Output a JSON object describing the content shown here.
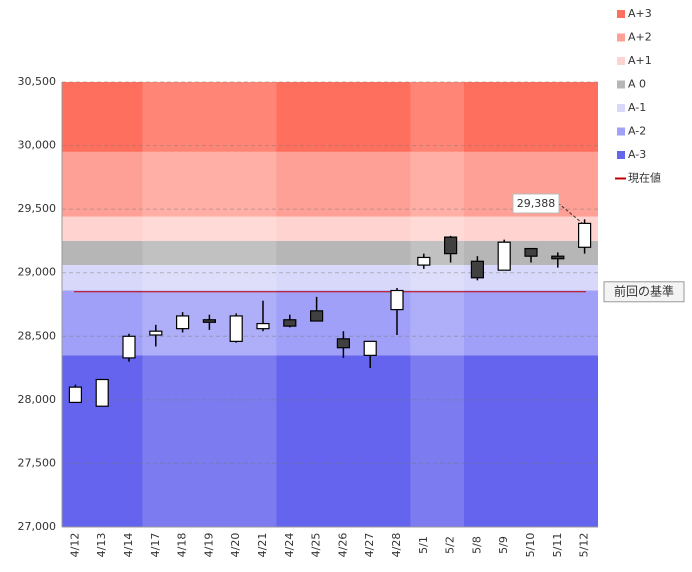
{
  "chart_data": {
    "type": "candlestick",
    "categories": [
      "4/12",
      "4/13",
      "4/14",
      "4/17",
      "4/18",
      "4/19",
      "4/20",
      "4/21",
      "4/24",
      "4/25",
      "4/26",
      "4/27",
      "4/28",
      "5/1",
      "5/2",
      "5/8",
      "5/9",
      "5/10",
      "5/11",
      "5/12"
    ],
    "open": [
      27980,
      27950,
      28330,
      28510,
      28560,
      28630,
      28460,
      28560,
      28630,
      28700,
      28480,
      28350,
      28710,
      29060,
      29280,
      29090,
      29020,
      29190,
      29130,
      29200
    ],
    "high": [
      28120,
      28160,
      28520,
      28590,
      28690,
      28670,
      28680,
      28780,
      28670,
      28810,
      28540,
      28460,
      28880,
      29150,
      29290,
      29130,
      29260,
      29190,
      29160,
      29420
    ],
    "low": [
      27980,
      27950,
      28300,
      28420,
      28530,
      28550,
      28450,
      28540,
      28570,
      28620,
      28330,
      28250,
      28510,
      29030,
      29080,
      28940,
      29020,
      29080,
      29040,
      29150
    ],
    "close": [
      28100,
      28160,
      28500,
      28540,
      28660,
      28610,
      28660,
      28600,
      28580,
      28620,
      28410,
      28460,
      28860,
      29120,
      29150,
      28960,
      29240,
      29130,
      29110,
      29388
    ],
    "up_color": "#ffffff",
    "down_color": "#404040",
    "zones": [
      {
        "name": "A+3",
        "color": "#ff6f5e",
        "from": 29950,
        "to": 30500
      },
      {
        "name": "A+2",
        "color": "#ffa096",
        "from": 29440,
        "to": 29950
      },
      {
        "name": "A+1",
        "color": "#ffd3cf",
        "from": 29250,
        "to": 29440
      },
      {
        "name": "A 0",
        "color": "#b6b6b6",
        "from": 29060,
        "to": 29250
      },
      {
        "name": "A-1",
        "color": "#d8d8fa",
        "from": 28860,
        "to": 29060
      },
      {
        "name": "A-2",
        "color": "#a0a0f8",
        "from": 28350,
        "to": 28860
      },
      {
        "name": "A-3",
        "color": "#6464ee",
        "from": 27000,
        "to": 28350
      }
    ],
    "reference": {
      "label": "前回の基準",
      "value": 28850,
      "color": "#c00000"
    },
    "current": {
      "name": "現在値",
      "value": 29388,
      "label": "29,388",
      "color": "#c00000"
    },
    "ylim": [
      27000,
      30500
    ],
    "yticks": [
      {
        "value": 27000,
        "label": "27,000"
      },
      {
        "value": 27500,
        "label": "27,500"
      },
      {
        "value": 28000,
        "label": "28,000"
      },
      {
        "value": 28500,
        "label": "28,500"
      },
      {
        "value": 29000,
        "label": "29,000"
      },
      {
        "value": 29500,
        "label": "29,500"
      },
      {
        "value": 30000,
        "label": "30,000"
      },
      {
        "value": 30500,
        "label": "30,500"
      }
    ]
  }
}
